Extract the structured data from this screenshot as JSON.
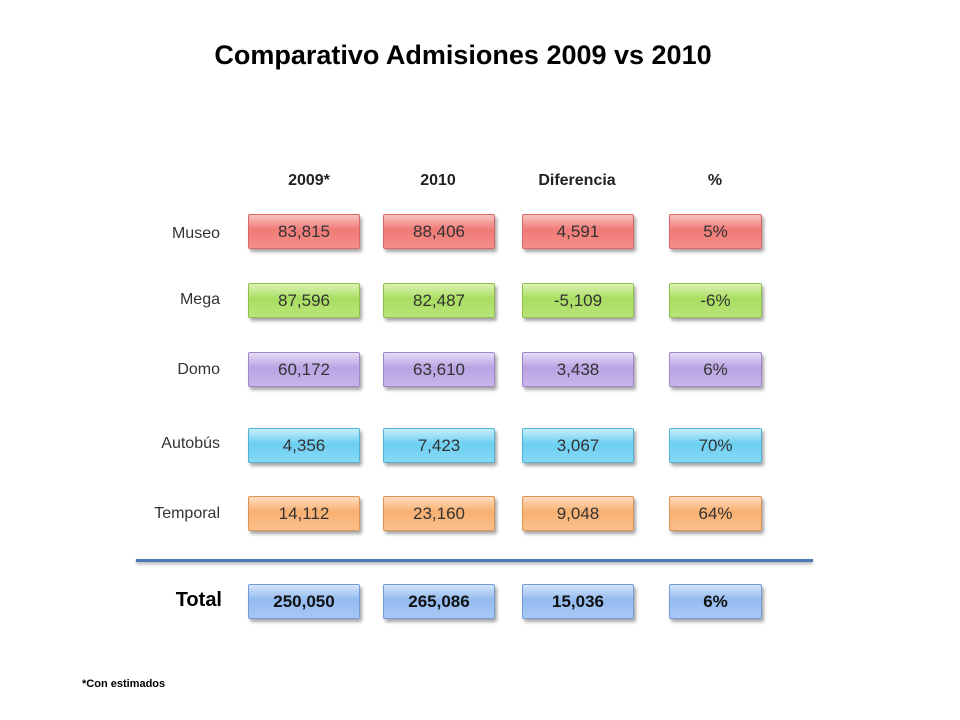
{
  "title": "Comparativo Admisiones 2009 vs 2010",
  "columns": [
    "2009*",
    "2010",
    "Diferencia",
    "%"
  ],
  "rows": [
    {
      "label": "Museo",
      "values": [
        "83,815",
        "88,406",
        "4,591",
        "5%"
      ]
    },
    {
      "label": "Mega",
      "values": [
        "87,596",
        "82,487",
        "-5,109",
        "-6%"
      ]
    },
    {
      "label": "Domo",
      "values": [
        "60,172",
        "63,610",
        "3,438",
        "6%"
      ]
    },
    {
      "label": "Autobús",
      "values": [
        "4,356",
        "7,423",
        "3,067",
        "70%"
      ]
    },
    {
      "label": "Temporal",
      "values": [
        "14,112",
        "23,160",
        "9,048",
        "64%"
      ]
    }
  ],
  "total": {
    "label": "Total",
    "values": [
      "250,050",
      "265,086",
      "15,036",
      "6%"
    ]
  },
  "footnote": "*Con estimados",
  "colors": {
    "Museo": "#f07a76",
    "Mega": "#a9dd60",
    "Domo": "#b9a3e3",
    "Autobús": "#6ccff2",
    "Temporal": "#f9b071",
    "Total": "#93bbf1",
    "separator": "#4f79b5"
  }
}
